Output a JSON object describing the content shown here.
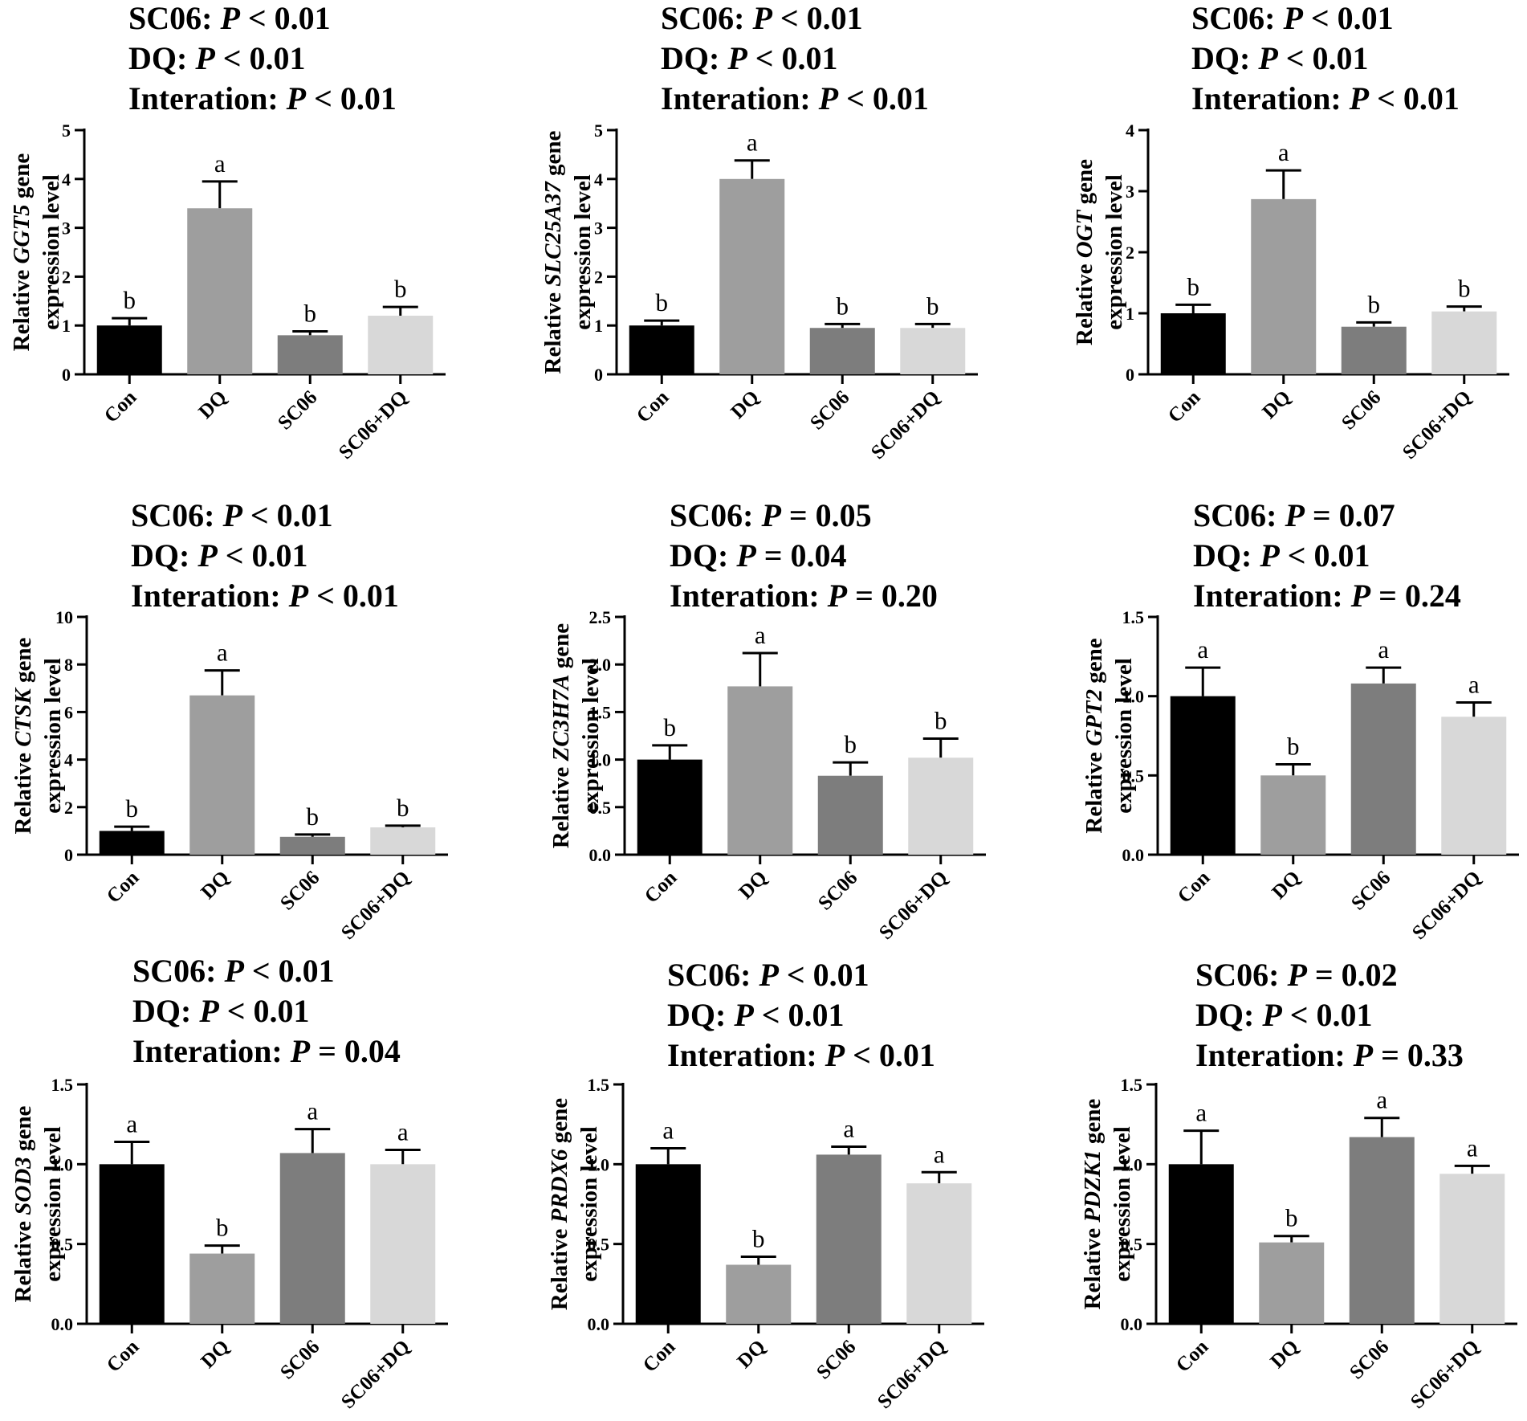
{
  "chart_data": [
    {
      "type": "bar",
      "gene": "GGT5",
      "title_lines": [
        {
          "label": "SC06:",
          "stat": "P",
          "rel": "<",
          "val": "0.01"
        },
        {
          "label": "DQ:",
          "stat": "P",
          "rel": "<",
          "val": "0.01"
        },
        {
          "label": "Interation:",
          "stat": "P",
          "rel": "<",
          "val": "0.01"
        }
      ],
      "ylabel": {
        "prefix": "Relative",
        "gene": "GGT5",
        "suffix": "gene",
        "line2": "expression level"
      },
      "ylim": [
        0,
        5
      ],
      "yticks": [
        "0",
        "1",
        "2",
        "3",
        "4",
        "5"
      ],
      "categories": [
        "Con",
        "DQ",
        "SC06",
        "SC06+DQ"
      ],
      "values": [
        1.0,
        3.4,
        0.8,
        1.2
      ],
      "errors": [
        0.15,
        0.55,
        0.08,
        0.18
      ],
      "letters": [
        "b",
        "a",
        "b",
        "b"
      ],
      "colors": [
        "#000000",
        "#9e9e9e",
        "#7d7d7d",
        "#d8d8d8"
      ]
    },
    {
      "type": "bar",
      "gene": "SLC25A37",
      "title_lines": [
        {
          "label": "SC06:",
          "stat": "P",
          "rel": "<",
          "val": "0.01"
        },
        {
          "label": "DQ:",
          "stat": "P",
          "rel": "<",
          "val": "0.01"
        },
        {
          "label": "Interation:",
          "stat": "P",
          "rel": "<",
          "val": "0.01"
        }
      ],
      "ylabel": {
        "prefix": "Relative",
        "gene": "SLC25A37",
        "suffix": "gene",
        "line2": "expression level"
      },
      "ylim": [
        0,
        5
      ],
      "yticks": [
        "0",
        "1",
        "2",
        "3",
        "4",
        "5"
      ],
      "categories": [
        "Con",
        "DQ",
        "SC06",
        "SC06+DQ"
      ],
      "values": [
        1.0,
        4.0,
        0.95,
        0.95
      ],
      "errors": [
        0.1,
        0.38,
        0.08,
        0.08
      ],
      "letters": [
        "b",
        "a",
        "b",
        "b"
      ],
      "colors": [
        "#000000",
        "#9e9e9e",
        "#7d7d7d",
        "#d8d8d8"
      ]
    },
    {
      "type": "bar",
      "gene": "OGT",
      "title_lines": [
        {
          "label": "SC06:",
          "stat": "P",
          "rel": "<",
          "val": "0.01"
        },
        {
          "label": "DQ:",
          "stat": "P",
          "rel": "<",
          "val": "0.01"
        },
        {
          "label": "Interation:",
          "stat": "P",
          "rel": "<",
          "val": "0.01"
        }
      ],
      "ylabel": {
        "prefix": "Relative",
        "gene": "OGT",
        "suffix": "gene",
        "line2": "expression level"
      },
      "ylim": [
        0,
        4
      ],
      "yticks": [
        "0",
        "1",
        "2",
        "3",
        "4"
      ],
      "categories": [
        "Con",
        "DQ",
        "SC06",
        "SC06+DQ"
      ],
      "values": [
        1.0,
        2.87,
        0.78,
        1.03
      ],
      "errors": [
        0.14,
        0.47,
        0.07,
        0.08
      ],
      "letters": [
        "b",
        "a",
        "b",
        "b"
      ],
      "colors": [
        "#000000",
        "#9e9e9e",
        "#7d7d7d",
        "#d8d8d8"
      ]
    },
    {
      "type": "bar",
      "gene": "CTSK",
      "title_lines": [
        {
          "label": "SC06:",
          "stat": "P",
          "rel": "<",
          "val": "0.01"
        },
        {
          "label": "DQ:",
          "stat": "P",
          "rel": "<",
          "val": "0.01"
        },
        {
          "label": "Interation:",
          "stat": "P",
          "rel": "<",
          "val": "0.01"
        }
      ],
      "ylabel": {
        "prefix": "Relative",
        "gene": "CTSK",
        "suffix": "gene",
        "line2": "expression level"
      },
      "ylim": [
        0,
        10
      ],
      "yticks": [
        "0",
        "2",
        "4",
        "6",
        "8",
        "10"
      ],
      "categories": [
        "Con",
        "DQ",
        "SC06",
        "SC06+DQ"
      ],
      "values": [
        1.0,
        6.7,
        0.75,
        1.15
      ],
      "errors": [
        0.18,
        1.05,
        0.1,
        0.07
      ],
      "letters": [
        "b",
        "a",
        "b",
        "b"
      ],
      "colors": [
        "#000000",
        "#9e9e9e",
        "#7d7d7d",
        "#d8d8d8"
      ]
    },
    {
      "type": "bar",
      "gene": "ZC3H7A",
      "title_lines": [
        {
          "label": "SC06:",
          "stat": "P",
          "rel": "=",
          "val": "0.05"
        },
        {
          "label": "DQ:",
          "stat": "P",
          "rel": "=",
          "val": "0.04"
        },
        {
          "label": "Interation:",
          "stat": "P",
          "rel": "=",
          "val": "0.20"
        }
      ],
      "ylabel": {
        "prefix": "Relative",
        "gene": "ZC3H7A",
        "suffix": "gene",
        "line2": "expression level"
      },
      "ylim": [
        0,
        2.5
      ],
      "yticks": [
        "0.0",
        "0.5",
        "1.0",
        "1.5",
        "2.0",
        "2.5"
      ],
      "categories": [
        "Con",
        "DQ",
        "SC06",
        "SC06+DQ"
      ],
      "values": [
        1.0,
        1.77,
        0.83,
        1.02
      ],
      "errors": [
        0.15,
        0.35,
        0.14,
        0.2
      ],
      "letters": [
        "b",
        "a",
        "b",
        "b"
      ],
      "colors": [
        "#000000",
        "#9e9e9e",
        "#7d7d7d",
        "#d8d8d8"
      ]
    },
    {
      "type": "bar",
      "gene": "GPT2",
      "title_lines": [
        {
          "label": "SC06:",
          "stat": "P",
          "rel": "=",
          "val": "0.07"
        },
        {
          "label": "DQ:",
          "stat": "P",
          "rel": "<",
          "val": "0.01"
        },
        {
          "label": "Interation:",
          "stat": "P",
          "rel": "=",
          "val": "0.24"
        }
      ],
      "ylabel": {
        "prefix": "Relative",
        "gene": "GPT2",
        "suffix": "gene",
        "line2": "expression level"
      },
      "ylim": [
        0,
        1.5
      ],
      "yticks": [
        "0.0",
        "0.5",
        "1.0",
        "1.5"
      ],
      "categories": [
        "Con",
        "DQ",
        "SC06",
        "SC06+DQ"
      ],
      "values": [
        1.0,
        0.5,
        1.08,
        0.87
      ],
      "errors": [
        0.18,
        0.07,
        0.1,
        0.09
      ],
      "letters": [
        "a",
        "b",
        "a",
        "a"
      ],
      "colors": [
        "#000000",
        "#9e9e9e",
        "#7d7d7d",
        "#d8d8d8"
      ]
    },
    {
      "type": "bar",
      "gene": "SOD3",
      "title_lines": [
        {
          "label": "SC06:",
          "stat": "P",
          "rel": "<",
          "val": "0.01"
        },
        {
          "label": "DQ:",
          "stat": "P",
          "rel": "<",
          "val": "0.01"
        },
        {
          "label": "Interation:",
          "stat": "P",
          "rel": "=",
          "val": "0.04"
        }
      ],
      "ylabel": {
        "prefix": "Relative",
        "gene": "SOD3",
        "suffix": "gene",
        "line2": "expression level"
      },
      "ylim": [
        0,
        1.5
      ],
      "yticks": [
        "0.0",
        "0.5",
        "1.0",
        "1.5"
      ],
      "categories": [
        "Con",
        "DQ",
        "SC06",
        "SC06+DQ"
      ],
      "values": [
        1.0,
        0.44,
        1.07,
        1.0
      ],
      "errors": [
        0.14,
        0.05,
        0.15,
        0.09
      ],
      "letters": [
        "a",
        "b",
        "a",
        "a"
      ],
      "colors": [
        "#000000",
        "#9e9e9e",
        "#7d7d7d",
        "#d8d8d8"
      ]
    },
    {
      "type": "bar",
      "gene": "PRDX6",
      "title_lines": [
        {
          "label": "SC06:",
          "stat": "P",
          "rel": "<",
          "val": "0.01"
        },
        {
          "label": "DQ:",
          "stat": "P",
          "rel": "<",
          "val": "0.01"
        },
        {
          "label": "Interation:",
          "stat": "P",
          "rel": "<",
          "val": "0.01"
        }
      ],
      "ylabel": {
        "prefix": "Relative",
        "gene": "PRDX6",
        "suffix": "gene",
        "line2": "expression level"
      },
      "ylim": [
        0,
        1.5
      ],
      "yticks": [
        "0.0",
        "0.5",
        "1.0",
        "1.5"
      ],
      "categories": [
        "Con",
        "DQ",
        "SC06",
        "SC06+DQ"
      ],
      "values": [
        1.0,
        0.37,
        1.06,
        0.88
      ],
      "errors": [
        0.1,
        0.05,
        0.05,
        0.07
      ],
      "letters": [
        "a",
        "b",
        "a",
        "a"
      ],
      "colors": [
        "#000000",
        "#9e9e9e",
        "#7d7d7d",
        "#d8d8d8"
      ]
    },
    {
      "type": "bar",
      "gene": "PDZK1",
      "title_lines": [
        {
          "label": "SC06:",
          "stat": "P",
          "rel": "=",
          "val": "0.02"
        },
        {
          "label": "DQ:",
          "stat": "P",
          "rel": "<",
          "val": "0.01"
        },
        {
          "label": "Interation:",
          "stat": "P",
          "rel": "=",
          "val": "0.33"
        }
      ],
      "ylabel": {
        "prefix": "Relative",
        "gene": "PDZK1",
        "suffix": "gene",
        "line2": "expression level"
      },
      "ylim": [
        0,
        1.5
      ],
      "yticks": [
        "0.0",
        "0.5",
        "1.0",
        "1.5"
      ],
      "categories": [
        "Con",
        "DQ",
        "SC06",
        "SC06+DQ"
      ],
      "values": [
        1.0,
        0.51,
        1.17,
        0.94
      ],
      "errors": [
        0.21,
        0.04,
        0.12,
        0.05
      ],
      "letters": [
        "a",
        "b",
        "a",
        "a"
      ],
      "colors": [
        "#000000",
        "#9e9e9e",
        "#7d7d7d",
        "#d8d8d8"
      ]
    }
  ]
}
